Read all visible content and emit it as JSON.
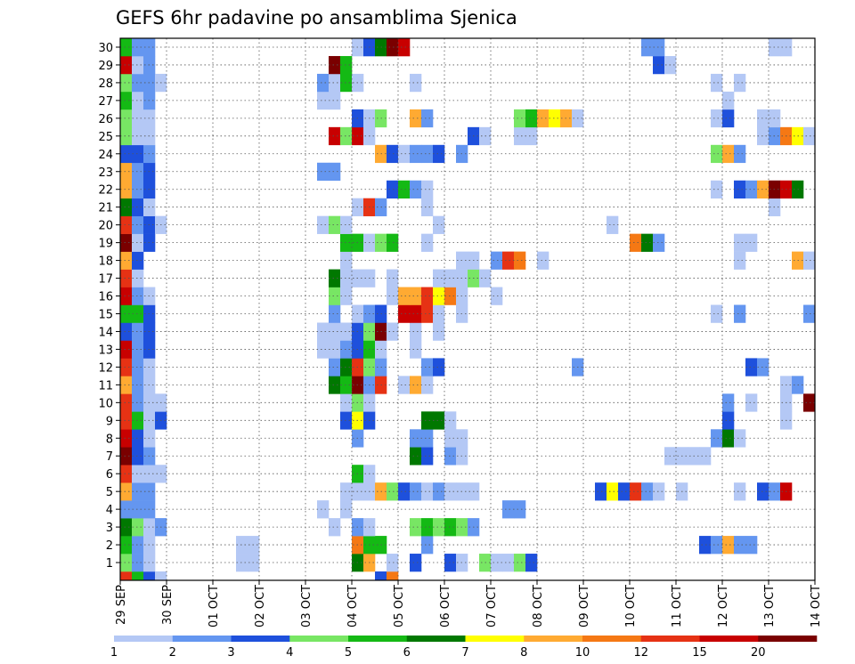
{
  "chart_data": {
    "type": "heatmap",
    "title": "GEFS 6hr padavine po ansamblima Sjenica",
    "xlabel": "",
    "ylabel": "",
    "x_tick_labels": [
      "29 SEP",
      "30 SEP",
      "01 OCT",
      "02 OCT",
      "03 OCT",
      "04 OCT",
      "05 OCT",
      "06 OCT",
      "07 OCT",
      "08 OCT",
      "09 OCT",
      "10 OCT",
      "11 OCT",
      "12 OCT",
      "13 OCT",
      "14 OCT"
    ],
    "y_tick_labels": [
      "1",
      "2",
      "3",
      "4",
      "5",
      "6",
      "7",
      "8",
      "9",
      "10",
      "11",
      "12",
      "13",
      "14",
      "15",
      "16",
      "17",
      "18",
      "19",
      "20",
      "21",
      "22",
      "23",
      "24",
      "25",
      "26",
      "27",
      "28",
      "29",
      "30"
    ],
    "x_range": [
      0,
      60
    ],
    "y_range": [
      0,
      30
    ],
    "grid": true,
    "colorbar": {
      "labels": [
        "1",
        "2",
        "3",
        "4",
        "5",
        "6",
        "7",
        "8",
        "10",
        "12",
        "15",
        "20"
      ],
      "colors": [
        "#b4c8f5",
        "#6496f0",
        "#1e50dc",
        "#78e664",
        "#14b914",
        "#007800",
        "#ffff00",
        "#ffaa32",
        "#f57814",
        "#e63214",
        "#c80000",
        "#7a0000"
      ]
    },
    "member_rows": {
      "1": [
        [
          0,
          4
        ],
        [
          1,
          2
        ],
        [
          2,
          1
        ],
        [
          10,
          1
        ],
        [
          11,
          1
        ],
        [
          20,
          6
        ],
        [
          21,
          8
        ],
        [
          23,
          1
        ],
        [
          25,
          3
        ],
        [
          28,
          3
        ],
        [
          29,
          1
        ],
        [
          31,
          4
        ],
        [
          32,
          1
        ],
        [
          33,
          1
        ],
        [
          34,
          4
        ],
        [
          35,
          3
        ]
      ],
      "2": [
        [
          0,
          5
        ],
        [
          1,
          2
        ],
        [
          2,
          1
        ],
        [
          10,
          1
        ],
        [
          11,
          1
        ],
        [
          20,
          9
        ],
        [
          21,
          5
        ],
        [
          22,
          5
        ],
        [
          26,
          2
        ],
        [
          50,
          3
        ],
        [
          51,
          2
        ],
        [
          52,
          8
        ],
        [
          53,
          2
        ],
        [
          54,
          2
        ]
      ],
      "3": [
        [
          0,
          6
        ],
        [
          1,
          4
        ],
        [
          2,
          1
        ],
        [
          3,
          2
        ],
        [
          18,
          1
        ],
        [
          20,
          2
        ],
        [
          21,
          1
        ],
        [
          25,
          4
        ],
        [
          26,
          5
        ],
        [
          27,
          4
        ],
        [
          28,
          5
        ],
        [
          29,
          4
        ],
        [
          30,
          2
        ]
      ],
      "4": [
        [
          0,
          2
        ],
        [
          1,
          2
        ],
        [
          2,
          2
        ],
        [
          17,
          1
        ],
        [
          19,
          1
        ],
        [
          33,
          2
        ],
        [
          34,
          2
        ]
      ],
      "5": [
        [
          0,
          8
        ],
        [
          1,
          2
        ],
        [
          2,
          2
        ],
        [
          19,
          1
        ],
        [
          20,
          1
        ],
        [
          21,
          1
        ],
        [
          22,
          8
        ],
        [
          23,
          4
        ],
        [
          24,
          3
        ],
        [
          25,
          2
        ],
        [
          26,
          1
        ],
        [
          27,
          2
        ],
        [
          28,
          1
        ],
        [
          29,
          1
        ],
        [
          30,
          1
        ],
        [
          41,
          3
        ],
        [
          42,
          7
        ],
        [
          43,
          3
        ],
        [
          44,
          10
        ],
        [
          45,
          2
        ],
        [
          46,
          1
        ],
        [
          48,
          1
        ],
        [
          53,
          1
        ],
        [
          55,
          3
        ],
        [
          56,
          2
        ],
        [
          57,
          11
        ]
      ],
      "6": [
        [
          0,
          10
        ],
        [
          1,
          1
        ],
        [
          2,
          1
        ],
        [
          3,
          1
        ],
        [
          20,
          5
        ],
        [
          21,
          1
        ]
      ],
      "7": [
        [
          0,
          12
        ],
        [
          1,
          3
        ],
        [
          2,
          2
        ],
        [
          25,
          6
        ],
        [
          26,
          3
        ],
        [
          28,
          2
        ],
        [
          29,
          1
        ],
        [
          47,
          1
        ],
        [
          48,
          1
        ],
        [
          49,
          1
        ],
        [
          50,
          1
        ]
      ],
      "8": [
        [
          0,
          11
        ],
        [
          1,
          3
        ],
        [
          2,
          1
        ],
        [
          20,
          2
        ],
        [
          25,
          2
        ],
        [
          26,
          2
        ],
        [
          28,
          1
        ],
        [
          29,
          1
        ],
        [
          51,
          2
        ],
        [
          52,
          6
        ],
        [
          53,
          1
        ]
      ],
      "9": [
        [
          0,
          10
        ],
        [
          1,
          5
        ],
        [
          2,
          1
        ],
        [
          3,
          3
        ],
        [
          19,
          3
        ],
        [
          20,
          7
        ],
        [
          21,
          3
        ],
        [
          26,
          6
        ],
        [
          27,
          6
        ],
        [
          28,
          1
        ],
        [
          52,
          3
        ],
        [
          57,
          1
        ]
      ],
      "10": [
        [
          0,
          10
        ],
        [
          1,
          2
        ],
        [
          2,
          1
        ],
        [
          3,
          1
        ],
        [
          19,
          1
        ],
        [
          20,
          4
        ],
        [
          21,
          1
        ],
        [
          52,
          2
        ],
        [
          54,
          1
        ],
        [
          57,
          1
        ],
        [
          59,
          12
        ]
      ],
      "11": [
        [
          0,
          8
        ],
        [
          1,
          2
        ],
        [
          2,
          1
        ],
        [
          18,
          6
        ],
        [
          19,
          5
        ],
        [
          20,
          12
        ],
        [
          21,
          2
        ],
        [
          22,
          10
        ],
        [
          24,
          1
        ],
        [
          25,
          8
        ],
        [
          26,
          1
        ],
        [
          57,
          1
        ],
        [
          58,
          2
        ]
      ],
      "12": [
        [
          0,
          10
        ],
        [
          1,
          2
        ],
        [
          2,
          1
        ],
        [
          18,
          2
        ],
        [
          19,
          6
        ],
        [
          20,
          10
        ],
        [
          21,
          4
        ],
        [
          22,
          2
        ],
        [
          26,
          2
        ],
        [
          27,
          3
        ],
        [
          39,
          2
        ],
        [
          54,
          3
        ],
        [
          55,
          2
        ]
      ],
      "13": [
        [
          0,
          11
        ],
        [
          1,
          2
        ],
        [
          2,
          3
        ],
        [
          17,
          1
        ],
        [
          18,
          1
        ],
        [
          19,
          2
        ],
        [
          20,
          3
        ],
        [
          21,
          5
        ],
        [
          22,
          1
        ],
        [
          25,
          1
        ]
      ],
      "14": [
        [
          0,
          3
        ],
        [
          1,
          2
        ],
        [
          2,
          3
        ],
        [
          17,
          1
        ],
        [
          18,
          1
        ],
        [
          19,
          1
        ],
        [
          20,
          3
        ],
        [
          21,
          4
        ],
        [
          22,
          12
        ],
        [
          23,
          1
        ],
        [
          25,
          1
        ],
        [
          27,
          1
        ]
      ],
      "15": [
        [
          0,
          5
        ],
        [
          1,
          5
        ],
        [
          2,
          3
        ],
        [
          18,
          2
        ],
        [
          20,
          1
        ],
        [
          21,
          2
        ],
        [
          22,
          3
        ],
        [
          24,
          11
        ],
        [
          25,
          11
        ],
        [
          26,
          10
        ],
        [
          27,
          1
        ],
        [
          29,
          1
        ],
        [
          51,
          1
        ],
        [
          53,
          2
        ],
        [
          59,
          2
        ]
      ],
      "16": [
        [
          0,
          11
        ],
        [
          1,
          2
        ],
        [
          2,
          1
        ],
        [
          18,
          4
        ],
        [
          19,
          1
        ],
        [
          23,
          1
        ],
        [
          24,
          8
        ],
        [
          25,
          8
        ],
        [
          26,
          10
        ],
        [
          27,
          7
        ],
        [
          28,
          9
        ],
        [
          29,
          1
        ],
        [
          32,
          1
        ]
      ],
      "17": [
        [
          0,
          10
        ],
        [
          1,
          1
        ],
        [
          18,
          6
        ],
        [
          19,
          1
        ],
        [
          20,
          1
        ],
        [
          21,
          1
        ],
        [
          23,
          1
        ],
        [
          27,
          1
        ],
        [
          28,
          1
        ],
        [
          29,
          1
        ],
        [
          30,
          4
        ],
        [
          31,
          1
        ]
      ],
      "18": [
        [
          0,
          8
        ],
        [
          1,
          3
        ],
        [
          19,
          1
        ],
        [
          29,
          1
        ],
        [
          30,
          1
        ],
        [
          32,
          2
        ],
        [
          33,
          10
        ],
        [
          34,
          9
        ],
        [
          36,
          1
        ],
        [
          53,
          1
        ],
        [
          58,
          8
        ],
        [
          59,
          1
        ]
      ],
      "19": [
        [
          0,
          12
        ],
        [
          1,
          1
        ],
        [
          2,
          3
        ],
        [
          19,
          5
        ],
        [
          20,
          5
        ],
        [
          21,
          1
        ],
        [
          22,
          4
        ],
        [
          23,
          5
        ],
        [
          26,
          1
        ],
        [
          44,
          9
        ],
        [
          45,
          6
        ],
        [
          46,
          2
        ],
        [
          53,
          1
        ],
        [
          54,
          1
        ]
      ],
      "20": [
        [
          0,
          10
        ],
        [
          1,
          2
        ],
        [
          2,
          3
        ],
        [
          3,
          1
        ],
        [
          17,
          1
        ],
        [
          18,
          4
        ],
        [
          19,
          1
        ],
        [
          27,
          1
        ],
        [
          42,
          1
        ]
      ],
      "21": [
        [
          0,
          6
        ],
        [
          1,
          3
        ],
        [
          2,
          1
        ],
        [
          20,
          1
        ],
        [
          21,
          10
        ],
        [
          22,
          2
        ],
        [
          26,
          1
        ],
        [
          56,
          1
        ]
      ],
      "22": [
        [
          0,
          8
        ],
        [
          1,
          2
        ],
        [
          2,
          3
        ],
        [
          23,
          3
        ],
        [
          24,
          5
        ],
        [
          25,
          2
        ],
        [
          26,
          1
        ],
        [
          51,
          1
        ],
        [
          53,
          3
        ],
        [
          54,
          2
        ],
        [
          55,
          8
        ],
        [
          56,
          12
        ],
        [
          57,
          11
        ],
        [
          58,
          6
        ]
      ],
      "23": [
        [
          0,
          8
        ],
        [
          1,
          2
        ],
        [
          2,
          3
        ],
        [
          17,
          2
        ],
        [
          18,
          2
        ]
      ],
      "24": [
        [
          0,
          3
        ],
        [
          1,
          3
        ],
        [
          2,
          2
        ],
        [
          22,
          8
        ],
        [
          23,
          3
        ],
        [
          24,
          1
        ],
        [
          25,
          2
        ],
        [
          26,
          2
        ],
        [
          27,
          3
        ],
        [
          29,
          2
        ],
        [
          51,
          4
        ],
        [
          52,
          8
        ],
        [
          53,
          2
        ]
      ],
      "25": [
        [
          0,
          4
        ],
        [
          1,
          1
        ],
        [
          2,
          1
        ],
        [
          18,
          11
        ],
        [
          19,
          4
        ],
        [
          20,
          11
        ],
        [
          21,
          1
        ],
        [
          30,
          3
        ],
        [
          31,
          1
        ],
        [
          34,
          1
        ],
        [
          35,
          1
        ],
        [
          55,
          1
        ],
        [
          56,
          2
        ],
        [
          57,
          9
        ],
        [
          58,
          7
        ],
        [
          59,
          1
        ]
      ],
      "26": [
        [
          0,
          4
        ],
        [
          1,
          1
        ],
        [
          2,
          1
        ],
        [
          20,
          3
        ],
        [
          21,
          1
        ],
        [
          22,
          4
        ],
        [
          25,
          8
        ],
        [
          26,
          2
        ],
        [
          34,
          4
        ],
        [
          35,
          5
        ],
        [
          36,
          8
        ],
        [
          37,
          7
        ],
        [
          38,
          8
        ],
        [
          39,
          1
        ],
        [
          51,
          1
        ],
        [
          52,
          3
        ],
        [
          55,
          1
        ],
        [
          56,
          1
        ]
      ],
      "27": [
        [
          0,
          5
        ],
        [
          1,
          1
        ],
        [
          2,
          2
        ],
        [
          17,
          1
        ],
        [
          18,
          1
        ],
        [
          52,
          1
        ]
      ],
      "28": [
        [
          0,
          4
        ],
        [
          1,
          2
        ],
        [
          2,
          2
        ],
        [
          3,
          1
        ],
        [
          17,
          2
        ],
        [
          18,
          1
        ],
        [
          19,
          5
        ],
        [
          20,
          1
        ],
        [
          25,
          1
        ],
        [
          51,
          1
        ],
        [
          53,
          1
        ]
      ],
      "29": [
        [
          0,
          11
        ],
        [
          1,
          1
        ],
        [
          2,
          2
        ],
        [
          18,
          12
        ],
        [
          19,
          5
        ],
        [
          46,
          3
        ],
        [
          47,
          1
        ]
      ],
      "30": [
        [
          0,
          5
        ],
        [
          1,
          2
        ],
        [
          2,
          2
        ],
        [
          20,
          1
        ],
        [
          21,
          3
        ],
        [
          22,
          6
        ],
        [
          23,
          12
        ],
        [
          24,
          11
        ],
        [
          45,
          2
        ],
        [
          46,
          2
        ],
        [
          56,
          1
        ],
        [
          57,
          1
        ]
      ],
      "0": [
        [
          0,
          10
        ],
        [
          1,
          5
        ],
        [
          2,
          3
        ],
        [
          3,
          1
        ],
        [
          22,
          3
        ],
        [
          23,
          9
        ]
      ]
    }
  }
}
